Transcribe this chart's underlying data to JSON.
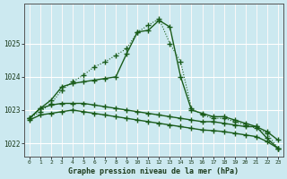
{
  "title": "Graphe pression niveau de la mer (hPa)",
  "bg_color": "#cce9f0",
  "plot_bg_color": "#cce9f0",
  "grid_color": "#b0d8e0",
  "line_color": "#1a5c1a",
  "ylim": [
    1021.6,
    1026.2
  ],
  "xlim": [
    -0.5,
    23.5
  ],
  "yticks": [
    1022,
    1023,
    1024,
    1025
  ],
  "xticks": [
    0,
    1,
    2,
    3,
    4,
    5,
    6,
    7,
    8,
    9,
    10,
    11,
    12,
    13,
    14,
    15,
    16,
    17,
    18,
    19,
    20,
    21,
    22,
    23
  ],
  "series": [
    {
      "x": [
        0,
        1,
        2,
        3,
        4,
        5,
        6,
        7,
        8,
        9,
        10,
        11,
        12,
        13,
        14,
        15,
        16,
        17,
        18,
        19,
        20,
        21,
        22,
        23
      ],
      "y": [
        1022.75,
        1022.95,
        1023.2,
        1023.6,
        1023.85,
        1024.05,
        1024.3,
        1024.45,
        1024.65,
        1024.85,
        1025.35,
        1025.55,
        1025.75,
        1025.0,
        1024.45,
        1023.05,
        1022.85,
        1022.75,
        1022.75,
        1022.65,
        1022.55,
        1022.45,
        1022.3,
        1021.85
      ],
      "marker": "+",
      "markersize": 4,
      "lw": 0.8,
      "ls": ":"
    },
    {
      "x": [
        0,
        1,
        2,
        3,
        4,
        5,
        6,
        7,
        8,
        9,
        10,
        11,
        12,
        13,
        14,
        15,
        16,
        17,
        18,
        19,
        20,
        21,
        22,
        23
      ],
      "y": [
        1022.75,
        1023.05,
        1023.3,
        1023.7,
        1023.8,
        1023.85,
        1023.9,
        1023.95,
        1024.0,
        1024.7,
        1025.35,
        1025.4,
        1025.7,
        1025.5,
        1024.0,
        1023.0,
        1022.9,
        1022.8,
        1022.8,
        1022.7,
        1022.6,
        1022.5,
        1022.15,
        1021.85
      ],
      "marker": "+",
      "markersize": 4,
      "lw": 1.0,
      "ls": "-"
    },
    {
      "x": [
        0,
        1,
        2,
        3,
        4,
        5,
        6,
        7,
        8,
        9,
        10,
        11,
        12,
        13,
        14,
        15,
        16,
        17,
        18,
        19,
        20,
        21,
        22,
        23
      ],
      "y": [
        1022.75,
        1023.05,
        1023.15,
        1023.2,
        1023.2,
        1023.2,
        1023.15,
        1023.1,
        1023.05,
        1023.0,
        1022.95,
        1022.9,
        1022.85,
        1022.8,
        1022.75,
        1022.7,
        1022.65,
        1022.65,
        1022.6,
        1022.55,
        1022.5,
        1022.5,
        1022.35,
        1022.1
      ],
      "marker": "+",
      "markersize": 4,
      "lw": 1.0,
      "ls": "-"
    },
    {
      "x": [
        0,
        1,
        2,
        3,
        4,
        5,
        6,
        7,
        8,
        9,
        10,
        11,
        12,
        13,
        14,
        15,
        16,
        17,
        18,
        19,
        20,
        21,
        22,
        23
      ],
      "y": [
        1022.7,
        1022.85,
        1022.9,
        1022.95,
        1023.0,
        1022.95,
        1022.9,
        1022.85,
        1022.8,
        1022.75,
        1022.7,
        1022.65,
        1022.6,
        1022.55,
        1022.5,
        1022.45,
        1022.4,
        1022.38,
        1022.35,
        1022.3,
        1022.25,
        1022.2,
        1022.05,
        1021.85
      ],
      "marker": "+",
      "markersize": 4,
      "lw": 1.0,
      "ls": "-"
    }
  ]
}
